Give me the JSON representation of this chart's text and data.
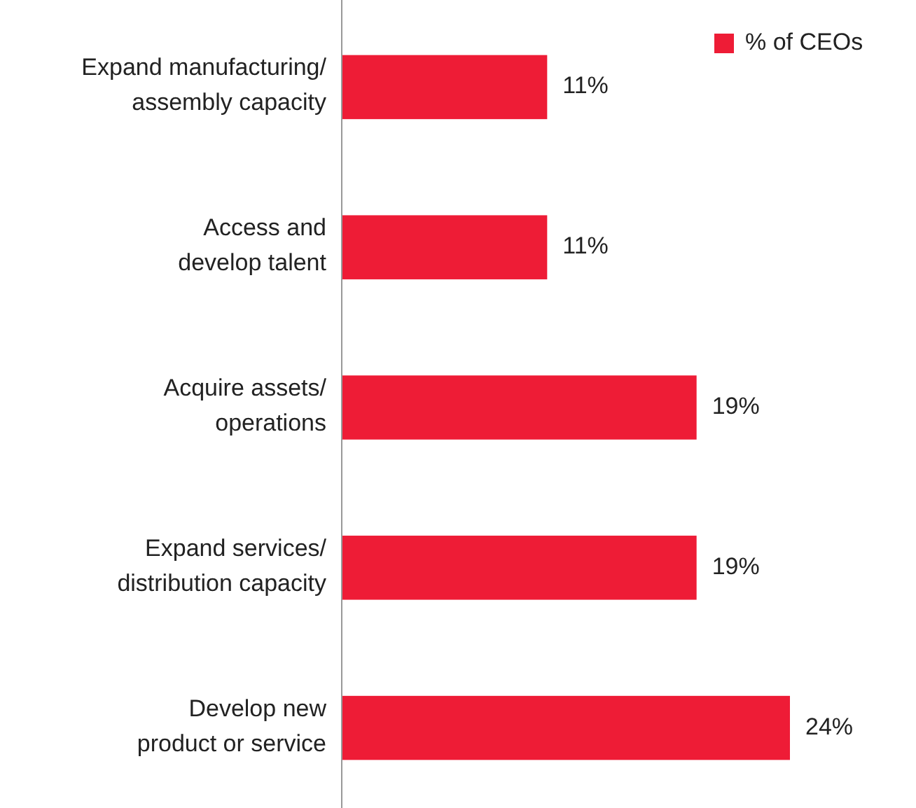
{
  "chart_data": {
    "type": "bar",
    "orientation": "horizontal",
    "categories": [
      "Expand manufacturing/ assembly capacity",
      "Access and develop talent",
      "Acquire assets/ operations",
      "Expand services/ distribution capacity",
      "Develop new product or service"
    ],
    "series": [
      {
        "name": "% of CEOs",
        "color": "#ee1c36",
        "values": [
          11,
          11,
          19,
          19,
          24
        ],
        "value_labels": [
          "11%",
          "11%",
          "19%",
          "19%",
          "24%"
        ]
      }
    ],
    "legend": "top right",
    "grid": false
  }
}
